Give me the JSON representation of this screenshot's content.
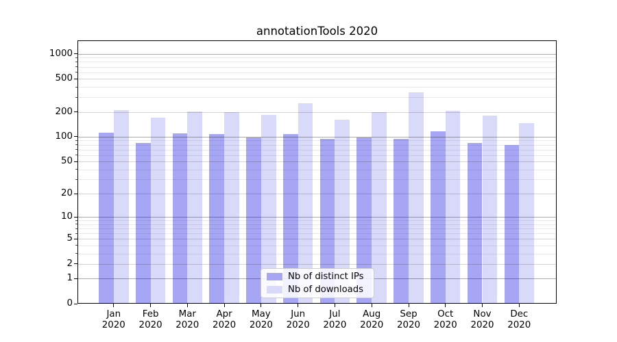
{
  "chart_data": {
    "type": "bar",
    "title": "annotationTools 2020",
    "categories": [
      "Jan 2020",
      "Feb 2020",
      "Mar 2020",
      "Apr 2020",
      "May 2020",
      "Jun 2020",
      "Jul 2020",
      "Aug 2020",
      "Sep 2020",
      "Oct 2020",
      "Nov 2020",
      "Dec 2020"
    ],
    "series": [
      {
        "name": "Nb of distinct IPs",
        "color": "#a6a6f5",
        "values": [
          112,
          84,
          110,
          107,
          98,
          108,
          95,
          99,
          94,
          116,
          84,
          80
        ]
      },
      {
        "name": "Nb of downloads",
        "color": "#d9d9f9",
        "values": [
          210,
          169,
          201,
          199,
          185,
          255,
          160,
          198,
          342,
          208,
          180,
          147
        ]
      }
    ],
    "xlabel": "",
    "ylabel": "",
    "y_scale": "log10(value+1)",
    "y_ticks": [
      0,
      1,
      2,
      5,
      10,
      20,
      50,
      100,
      200,
      500,
      1000
    ],
    "ylim": [
      0,
      1450
    ],
    "grid": true,
    "legend_position": "lower center",
    "grid_colors": {
      "major": "#ababab",
      "labeled_minor": "#d4d4d4",
      "minor": "#eaeaea"
    }
  }
}
